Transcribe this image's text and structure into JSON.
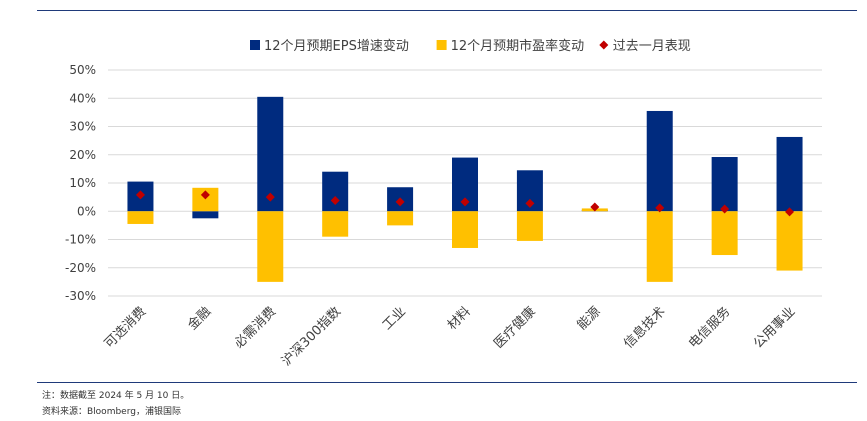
{
  "chart_data": {
    "type": "bar",
    "categories": [
      "可选消费",
      "金融",
      "必需消费",
      "沪深300指数",
      "工业",
      "材料",
      "医疗健康",
      "能源",
      "信息技术",
      "电信服务",
      "公用事业"
    ],
    "series": [
      {
        "name": "12个月预期EPS增速变动",
        "type": "bar",
        "color": "#002B7F",
        "values": [
          10.5,
          -2.5,
          40.5,
          14.0,
          8.5,
          19.0,
          14.5,
          0.5,
          35.5,
          19.2,
          26.3
        ]
      },
      {
        "name": "12个月预期市盈率变动",
        "type": "bar",
        "color": "#FFC000",
        "values": [
          -4.5,
          8.3,
          -25.0,
          -9.0,
          -5.0,
          -13.0,
          -10.5,
          1.0,
          -25.0,
          -15.5,
          -21.0
        ]
      },
      {
        "name": "过去一月表现",
        "type": "marker",
        "color": "#C00000",
        "values": [
          5.8,
          5.8,
          5.0,
          3.8,
          3.3,
          3.3,
          2.8,
          1.5,
          1.2,
          0.8,
          -0.2
        ]
      }
    ],
    "ylim": [
      -30,
      50
    ],
    "yticks": [
      "50%",
      "40%",
      "30%",
      "20%",
      "10%",
      "0%",
      "-10%",
      "-20%",
      "-30%"
    ],
    "grid": true,
    "legend_position": "top"
  },
  "footnotes": {
    "note": "注：数据截至 2024 年 5 月 10 日。",
    "source": "资料来源：Bloomberg，浦银国际"
  }
}
